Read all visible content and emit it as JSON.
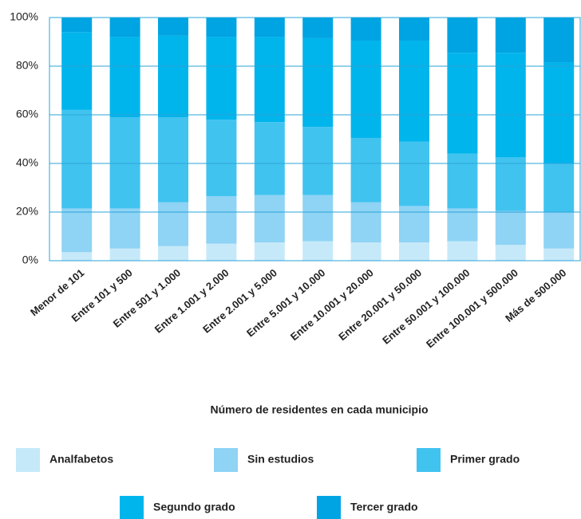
{
  "chart_data": {
    "type": "stacked_bar_100",
    "x_label": "Número de residentes en cada municipio",
    "categories": [
      "Menor de 101",
      "Entre 101 y 500",
      "Entre 501 y 1.000",
      "Entre 1.001 y 2.000",
      "Entre 2.001 y 5.000",
      "Entre 5.001 y 10.000",
      "Entre 10.001 y 20.000",
      "Entre 20.001 y 50.000",
      "Entre 50.001 y 100.000",
      "Entre 100.001 y 500.000",
      "Más de 500.000"
    ],
    "series": [
      {
        "name": "Analfabetos",
        "color": "#c6e9f9",
        "values": [
          3.5,
          5,
          6,
          7,
          7.5,
          8,
          7.5,
          7.5,
          8,
          6.5,
          5
        ]
      },
      {
        "name": "Sin estudios",
        "color": "#8fd3f5",
        "values": [
          18,
          16.5,
          18,
          19.5,
          19.5,
          19,
          16.5,
          15,
          13.5,
          14,
          15
        ]
      },
      {
        "name": "Primer grado",
        "color": "#41c3f0",
        "values": [
          40.5,
          37.5,
          35,
          31.5,
          30,
          28,
          26.5,
          26.5,
          22.5,
          22,
          20
        ]
      },
      {
        "name": "Segundo grado",
        "color": "#00b5ec",
        "values": [
          32,
          33,
          33.5,
          34,
          35,
          36.5,
          40,
          41.5,
          41.5,
          43,
          41.5
        ]
      },
      {
        "name": "Tercer grado",
        "color": "#00a4e2",
        "values": [
          6,
          8,
          7.5,
          8,
          8,
          8.5,
          9.5,
          9.5,
          14.5,
          14.5,
          18.5
        ]
      }
    ],
    "ylim": [
      0,
      100
    ],
    "yticks": [
      {
        "value": 0,
        "label": "0%"
      },
      {
        "value": 20,
        "label": "20%"
      },
      {
        "value": 40,
        "label": "40%"
      },
      {
        "value": 60,
        "label": "60%"
      },
      {
        "value": 80,
        "label": "80%"
      },
      {
        "value": 100,
        "label": "100%"
      }
    ],
    "grid": true,
    "grid_color": "#2aa4d8",
    "legend": "bottom"
  }
}
